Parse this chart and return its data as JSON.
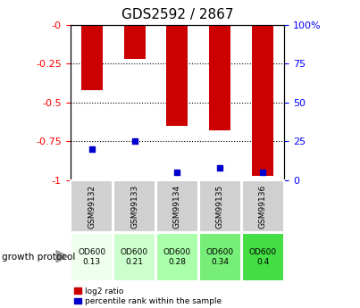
{
  "title": "GDS2592 / 2867",
  "samples": [
    "GSM99132",
    "GSM99133",
    "GSM99134",
    "GSM99135",
    "GSM99136"
  ],
  "log2_ratio": [
    -0.42,
    -0.22,
    -0.65,
    -0.68,
    -0.97
  ],
  "percentile": [
    20,
    25,
    5,
    8,
    5
  ],
  "ylim_left": [
    -1.0,
    0.0
  ],
  "ylim_right": [
    0,
    100
  ],
  "yticks_left": [
    0.0,
    -0.25,
    -0.5,
    -0.75,
    -1.0
  ],
  "ytick_labels_left": [
    "-0",
    "-0.25",
    "-0.5",
    "-0.75",
    "-1"
  ],
  "yticks_right": [
    0,
    25,
    50,
    75,
    100
  ],
  "ytick_labels_right": [
    "0",
    "25",
    "50",
    "75",
    "100%"
  ],
  "bar_color": "#cc0000",
  "dot_color": "#0000cc",
  "bar_width": 0.5,
  "growth_protocol": "growth protocol",
  "od_labels": [
    "OD600\n0.13",
    "OD600\n0.21",
    "OD600\n0.28",
    "OD600\n0.34",
    "OD600\n0.4"
  ],
  "od_colors": [
    "#eeffee",
    "#ccffcc",
    "#aaffaa",
    "#77ee77",
    "#44dd44"
  ],
  "sample_bg_color": "#d0d0d0",
  "legend_red_label": "log2 ratio",
  "legend_blue_label": "percentile rank within the sample",
  "title_fontsize": 11,
  "tick_fontsize": 8
}
